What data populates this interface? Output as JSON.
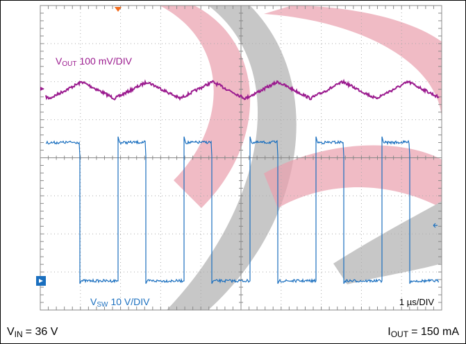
{
  "traces": [
    {
      "symbol": "V",
      "subscript": "OUT",
      "scale": "100 mV/DIV"
    },
    {
      "symbol": "V",
      "subscript": "SW",
      "scale": "10 V/DIV"
    }
  ],
  "timebase": "1 µs/DIV",
  "conditions": [
    {
      "symbol": "V",
      "subscript": "IN",
      "value": "= 36 V"
    },
    {
      "symbol": "I",
      "subscript": "OUT",
      "value": "= 150 mA"
    }
  ]
}
